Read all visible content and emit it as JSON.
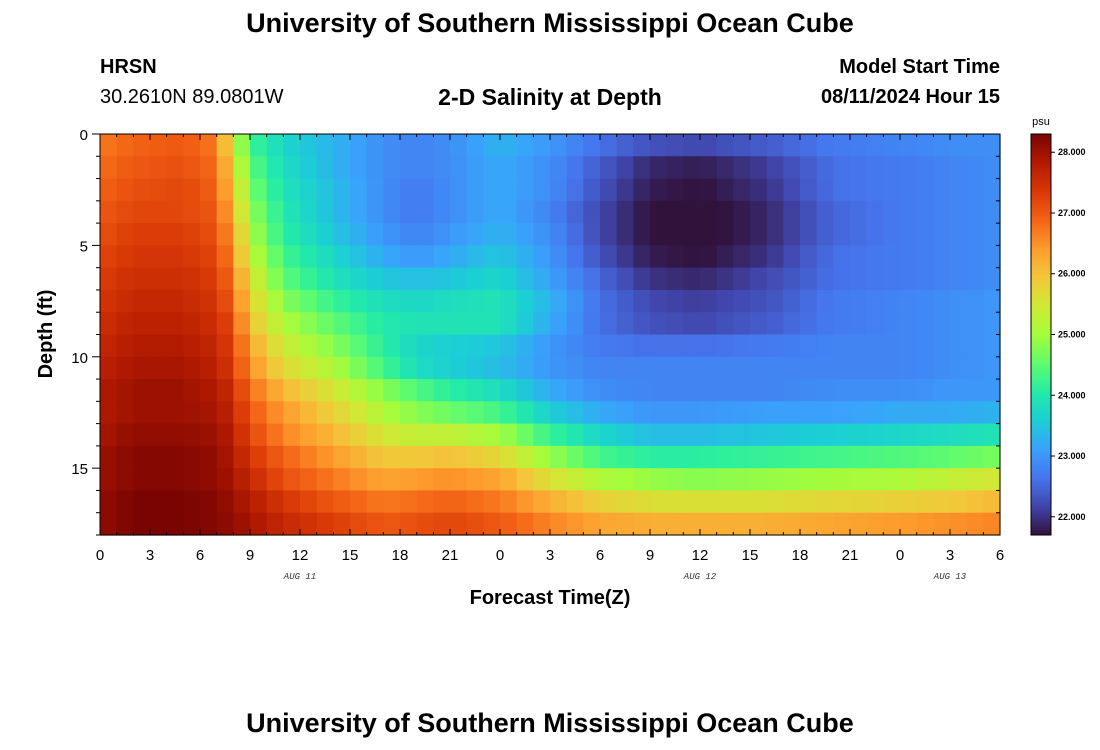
{
  "header": {
    "title_top": "University of Southern Mississippi Ocean Cube",
    "title_bottom": "University of Southern Mississippi Ocean Cube",
    "station": "HRSN",
    "coords": "30.2610N  89.0801W",
    "subtitle": "2-D Salinity at Depth",
    "model_start_label": "Model Start Time",
    "model_start_value": "08/11/2024 Hour 15"
  },
  "chart_data": {
    "type": "heatmap",
    "title": "2-D Salinity at Depth",
    "xlabel": "Forecast Time(Z)",
    "ylabel": "Depth (ft)",
    "x_tick_labels": [
      "0",
      "3",
      "6",
      "9",
      "12",
      "15",
      "18",
      "21",
      "0",
      "3",
      "6",
      "9",
      "12",
      "15",
      "18",
      "21",
      "0",
      "3",
      "6"
    ],
    "date_labels": [
      {
        "text": "AUG 11",
        "tick_index": 4
      },
      {
        "text": "AUG 12",
        "tick_index": 12
      },
      {
        "text": "AUG 13",
        "tick_index": 17
      }
    ],
    "xlim_hours": [
      0,
      54
    ],
    "y_tick_values": [
      0,
      5,
      10,
      15
    ],
    "y_tick_labels": [
      "0",
      "5",
      "10",
      "15"
    ],
    "ylim": [
      0,
      18
    ],
    "y_inverted": true,
    "colorbar": {
      "unit": "psu",
      "min": 21.7,
      "max": 28.3,
      "tick_values": [
        22,
        23,
        24,
        25,
        26,
        27,
        28
      ],
      "tick_labels": [
        "22.000",
        "23.000",
        "24.000",
        "25.000",
        "26.000",
        "27.000",
        "28.000"
      ],
      "colormap": [
        "#30123b",
        "#4145ab",
        "#4675ed",
        "#39a2fc",
        "#1bcfd4",
        "#24eca6",
        "#61fc6c",
        "#a4fc3b",
        "#d1e834",
        "#f3c63a",
        "#fe9b2d",
        "#f36315",
        "#d93806",
        "#b11901",
        "#7a0402"
      ]
    },
    "grid_hours": 1,
    "grid_depth_ft": 1,
    "time_anchors": [
      0,
      2,
      5,
      7,
      8,
      9,
      11,
      14,
      17,
      19,
      21,
      24,
      27,
      30,
      33,
      36,
      40,
      44,
      48,
      51,
      54
    ],
    "salinity_rows": [
      {
        "depth": 0.5,
        "values": [
          26.7,
          26.9,
          27.0,
          26.7,
          25.4,
          24.3,
          23.7,
          23.3,
          22.9,
          22.8,
          22.9,
          23.3,
          23.0,
          22.6,
          22.3,
          22.2,
          22.4,
          22.7,
          22.8,
          22.9,
          22.9
        ]
      },
      {
        "depth": 1.5,
        "values": [
          26.8,
          27.0,
          27.1,
          26.8,
          25.7,
          24.5,
          23.8,
          23.3,
          22.9,
          22.8,
          22.9,
          23.2,
          22.9,
          22.4,
          21.9,
          21.8,
          22.1,
          22.6,
          22.7,
          22.8,
          22.9
        ]
      },
      {
        "depth": 2.5,
        "values": [
          26.9,
          27.1,
          27.2,
          26.9,
          25.9,
          24.7,
          23.9,
          23.4,
          22.9,
          22.7,
          22.9,
          23.2,
          22.9,
          22.3,
          21.8,
          21.7,
          22.0,
          22.6,
          22.7,
          22.8,
          22.9
        ]
      },
      {
        "depth": 3.5,
        "values": [
          27.0,
          27.2,
          27.2,
          27.0,
          26.1,
          24.9,
          24.0,
          23.4,
          22.9,
          22.7,
          22.9,
          23.2,
          22.8,
          22.2,
          21.7,
          21.6,
          21.9,
          22.5,
          22.7,
          22.8,
          22.9
        ]
      },
      {
        "depth": 4.5,
        "values": [
          27.1,
          27.3,
          27.3,
          27.1,
          26.3,
          25.1,
          24.1,
          23.5,
          23.0,
          22.8,
          23.0,
          23.3,
          22.9,
          22.2,
          21.7,
          21.6,
          21.9,
          22.5,
          22.7,
          22.8,
          22.9
        ]
      },
      {
        "depth": 5.5,
        "values": [
          27.2,
          27.4,
          27.4,
          27.2,
          26.5,
          25.3,
          24.3,
          23.7,
          23.2,
          23.0,
          23.2,
          23.5,
          23.0,
          22.3,
          21.8,
          21.7,
          22.0,
          22.6,
          22.7,
          22.8,
          22.9
        ]
      },
      {
        "depth": 6.5,
        "values": [
          27.3,
          27.5,
          27.5,
          27.3,
          26.7,
          25.6,
          24.5,
          23.9,
          23.5,
          23.4,
          23.5,
          23.7,
          23.1,
          22.5,
          22.0,
          21.9,
          22.2,
          22.6,
          22.7,
          22.8,
          22.9
        ]
      },
      {
        "depth": 7.5,
        "values": [
          27.4,
          27.6,
          27.6,
          27.4,
          26.9,
          25.8,
          24.8,
          24.2,
          23.8,
          23.7,
          23.8,
          23.9,
          23.3,
          22.6,
          22.2,
          22.1,
          22.3,
          22.7,
          22.8,
          22.9,
          23.0
        ]
      },
      {
        "depth": 8.5,
        "values": [
          27.5,
          27.7,
          27.7,
          27.5,
          27.1,
          26.0,
          25.1,
          24.5,
          24.0,
          23.9,
          23.9,
          23.9,
          23.2,
          22.6,
          22.3,
          22.2,
          22.4,
          22.7,
          22.8,
          22.9,
          23.0
        ]
      },
      {
        "depth": 9.5,
        "values": [
          27.6,
          27.8,
          27.8,
          27.6,
          27.2,
          26.3,
          25.4,
          24.8,
          24.1,
          23.7,
          23.6,
          23.5,
          23.0,
          22.7,
          22.6,
          22.6,
          22.7,
          22.8,
          22.8,
          22.9,
          23.0
        ]
      },
      {
        "depth": 10.5,
        "values": [
          27.7,
          27.9,
          27.9,
          27.7,
          27.3,
          26.5,
          25.7,
          25.1,
          24.3,
          23.8,
          23.6,
          23.4,
          23.0,
          22.8,
          22.8,
          22.8,
          22.8,
          22.8,
          22.8,
          22.9,
          23.0
        ]
      },
      {
        "depth": 11.5,
        "values": [
          27.8,
          28.0,
          28.0,
          27.8,
          27.5,
          26.8,
          26.1,
          25.5,
          24.8,
          24.4,
          24.1,
          23.8,
          23.2,
          22.9,
          22.8,
          22.8,
          22.8,
          22.9,
          22.9,
          23.0,
          23.0
        ]
      },
      {
        "depth": 12.5,
        "values": [
          27.8,
          28.0,
          28.0,
          27.9,
          27.6,
          27.0,
          26.4,
          25.8,
          25.1,
          24.8,
          24.6,
          24.3,
          23.6,
          23.2,
          23.0,
          23.0,
          23.1,
          23.1,
          23.2,
          23.2,
          23.3
        ]
      },
      {
        "depth": 13.5,
        "values": [
          27.9,
          28.1,
          28.1,
          28.0,
          27.7,
          27.2,
          26.6,
          26.1,
          25.5,
          25.3,
          25.3,
          25.0,
          24.2,
          23.7,
          23.4,
          23.4,
          23.5,
          23.6,
          23.7,
          23.8,
          23.9
        ]
      },
      {
        "depth": 14.5,
        "values": [
          28.0,
          28.2,
          28.2,
          28.1,
          27.8,
          27.4,
          26.9,
          26.4,
          25.9,
          25.9,
          26.0,
          25.7,
          24.9,
          24.3,
          24.1,
          24.1,
          24.2,
          24.3,
          24.4,
          24.5,
          24.7
        ]
      },
      {
        "depth": 15.5,
        "values": [
          28.0,
          28.2,
          28.2,
          28.1,
          27.9,
          27.6,
          27.1,
          26.7,
          26.3,
          26.4,
          26.5,
          26.3,
          25.6,
          25.1,
          24.9,
          24.8,
          24.9,
          25.0,
          25.1,
          25.3,
          25.5
        ]
      },
      {
        "depth": 16.5,
        "values": [
          28.1,
          28.3,
          28.3,
          28.2,
          28.0,
          27.8,
          27.4,
          27.0,
          26.7,
          26.8,
          26.9,
          26.7,
          26.2,
          25.8,
          25.6,
          25.6,
          25.6,
          25.7,
          25.8,
          25.9,
          26.1
        ]
      },
      {
        "depth": 17.5,
        "values": [
          28.1,
          28.3,
          28.3,
          28.2,
          28.1,
          27.9,
          27.6,
          27.3,
          27.0,
          27.1,
          27.2,
          27.0,
          26.6,
          26.3,
          26.2,
          26.2,
          26.2,
          26.3,
          26.4,
          26.5,
          26.6
        ]
      }
    ]
  }
}
